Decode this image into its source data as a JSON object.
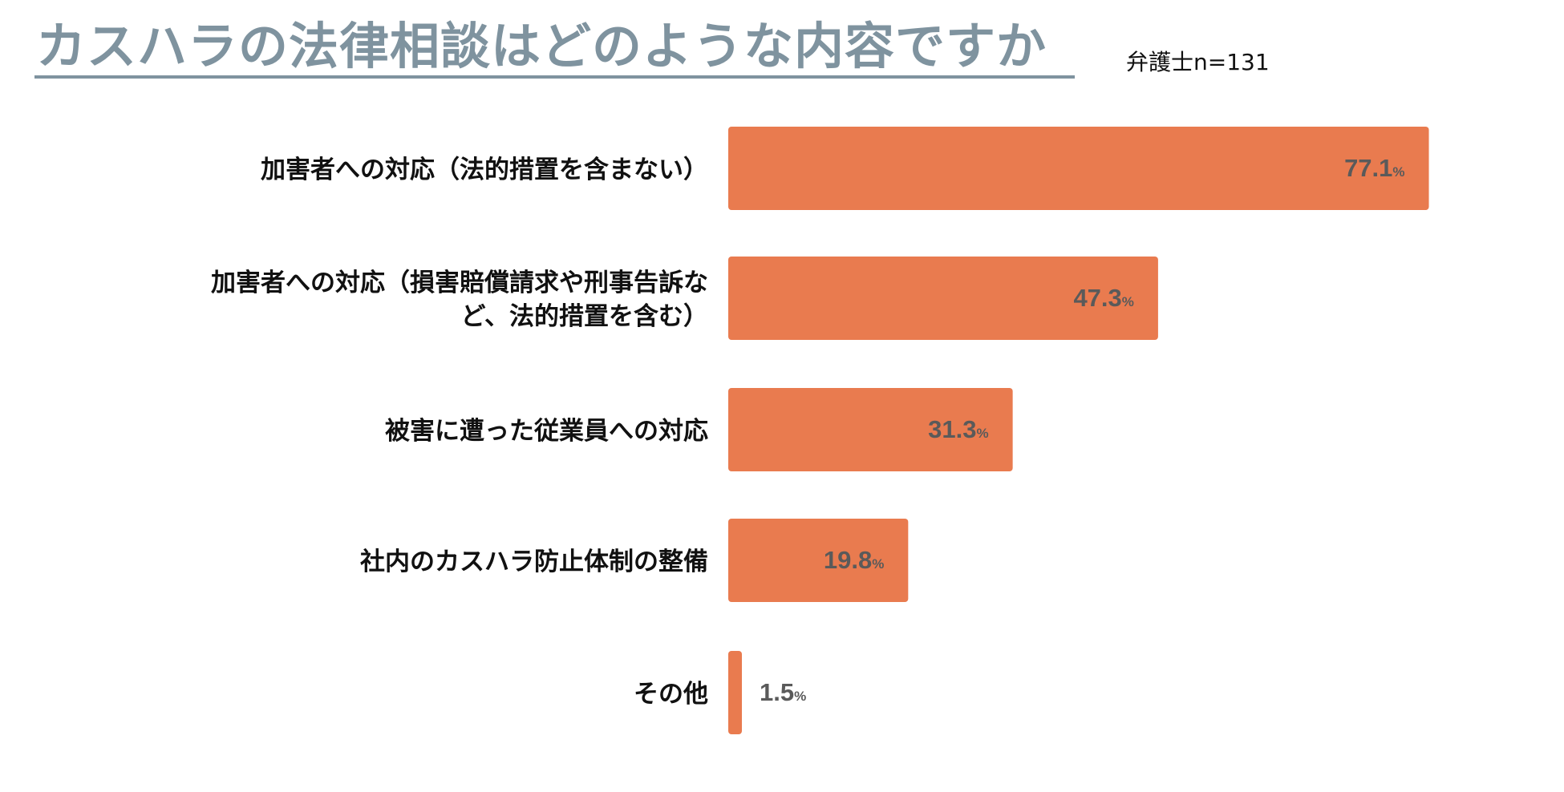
{
  "title": "カスハラの法律相談はどのような内容ですか",
  "sample_note": "弁護士n=131",
  "colors": {
    "title": "#7f939f",
    "bar": "#e97b4f",
    "value_label": "#5a5a5a",
    "category_label": "#111111"
  },
  "chart_data": {
    "type": "bar",
    "orientation": "horizontal",
    "title": "カスハラの法律相談はどのような内容ですか",
    "note": "弁護士n=131",
    "unit": "%",
    "categories": [
      [
        "加害者への対応（法的措置を含まない）"
      ],
      [
        "加害者への対応（損害賠償請求や刑事告訴な",
        "ど、法的措置を含む）"
      ],
      [
        "被害に遭った従業員への対応"
      ],
      [
        "社内のカスハラ防止体制の整備"
      ],
      [
        "その他"
      ]
    ],
    "values": [
      77.1,
      47.3,
      31.3,
      19.8,
      1.5
    ],
    "value_labels": [
      "77.1",
      "47.3",
      "31.3",
      "19.8",
      "1.5"
    ],
    "xlim": [
      0,
      100
    ],
    "grid": false,
    "legend": "none"
  }
}
